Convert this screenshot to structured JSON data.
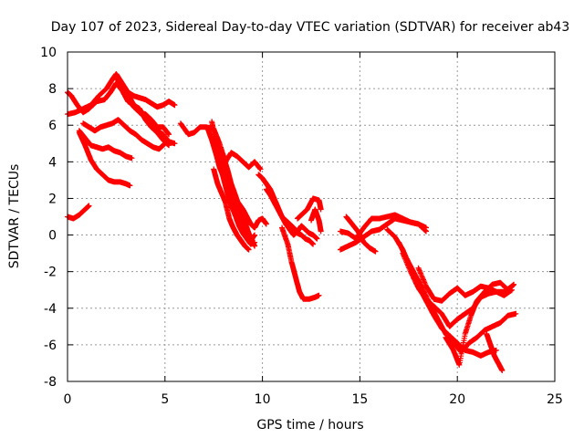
{
  "chart_data": {
    "type": "scatter",
    "title": "Day 107 of 2023, Sidereal Day-to-day VTEC variation (SDTVAR) for receiver ab43",
    "xlabel": "GPS time / hours",
    "ylabel": "SDTVAR / TECUs",
    "xlim": [
      0,
      25
    ],
    "ylim": [
      -8,
      10
    ],
    "xticks": [
      0,
      5,
      10,
      15,
      20,
      25
    ],
    "yticks": [
      -8,
      -6,
      -4,
      -2,
      0,
      2,
      4,
      6,
      8,
      10
    ],
    "grid": true,
    "marker": "+",
    "color": "#ff0000",
    "tracks": [
      [
        [
          0.0,
          1.0
        ],
        [
          0.3,
          0.9
        ],
        [
          0.6,
          1.1
        ],
        [
          0.9,
          1.4
        ],
        [
          1.1,
          1.6
        ]
      ],
      [
        [
          0.0,
          6.6
        ],
        [
          0.4,
          6.7
        ],
        [
          0.8,
          6.9
        ],
        [
          1.2,
          7.1
        ],
        [
          1.6,
          7.6
        ],
        [
          2.0,
          8.0
        ],
        [
          2.3,
          8.5
        ],
        [
          2.5,
          8.8
        ],
        [
          2.8,
          8.3
        ],
        [
          3.1,
          7.8
        ],
        [
          3.4,
          7.6
        ],
        [
          3.7,
          7.5
        ],
        [
          4.0,
          7.4
        ],
        [
          4.3,
          7.2
        ],
        [
          4.6,
          7.0
        ],
        [
          4.9,
          7.1
        ],
        [
          5.2,
          7.3
        ],
        [
          5.5,
          7.1
        ]
      ],
      [
        [
          0.0,
          7.8
        ],
        [
          0.2,
          7.6
        ],
        [
          0.5,
          7.1
        ],
        [
          0.8,
          6.7
        ],
        [
          1.1,
          6.9
        ],
        [
          1.5,
          7.3
        ],
        [
          1.9,
          7.4
        ],
        [
          2.2,
          7.8
        ],
        [
          2.5,
          8.3
        ],
        [
          2.8,
          7.9
        ],
        [
          3.1,
          7.3
        ],
        [
          3.4,
          7.1
        ],
        [
          3.7,
          6.7
        ],
        [
          4.0,
          6.6
        ],
        [
          4.3,
          6.3
        ],
        [
          4.6,
          5.9
        ],
        [
          4.9,
          5.9
        ],
        [
          5.2,
          5.5
        ]
      ],
      [
        [
          2.8,
          8.2
        ],
        [
          3.1,
          7.7
        ],
        [
          3.4,
          7.1
        ],
        [
          3.7,
          6.9
        ],
        [
          4.0,
          6.3
        ],
        [
          4.3,
          5.9
        ],
        [
          4.6,
          5.7
        ],
        [
          4.9,
          5.5
        ],
        [
          5.2,
          5.1
        ],
        [
          5.5,
          5.0
        ]
      ],
      [
        [
          2.5,
          8.6
        ],
        [
          2.8,
          8.1
        ],
        [
          3.1,
          7.4
        ],
        [
          3.4,
          7.0
        ],
        [
          3.7,
          6.7
        ],
        [
          4.0,
          6.4
        ],
        [
          4.3,
          5.9
        ],
        [
          4.6,
          5.6
        ],
        [
          4.9,
          5.2
        ],
        [
          5.2,
          4.9
        ]
      ],
      [
        [
          0.8,
          6.1
        ],
        [
          1.1,
          5.9
        ],
        [
          1.4,
          5.7
        ],
        [
          1.7,
          5.9
        ],
        [
          2.0,
          6.0
        ],
        [
          2.3,
          6.1
        ],
        [
          2.6,
          6.3
        ],
        [
          2.9,
          6.0
        ],
        [
          3.2,
          5.7
        ],
        [
          3.5,
          5.5
        ],
        [
          3.8,
          5.2
        ],
        [
          4.1,
          5.0
        ],
        [
          4.4,
          4.8
        ],
        [
          4.7,
          4.7
        ],
        [
          5.0,
          5.0
        ]
      ],
      [
        [
          0.6,
          5.7
        ],
        [
          0.9,
          5.3
        ],
        [
          1.2,
          4.9
        ],
        [
          1.5,
          4.8
        ],
        [
          1.8,
          4.7
        ],
        [
          2.1,
          4.8
        ],
        [
          2.4,
          4.6
        ],
        [
          2.7,
          4.5
        ],
        [
          3.0,
          4.3
        ],
        [
          3.3,
          4.2
        ]
      ],
      [
        [
          0.6,
          5.6
        ],
        [
          0.9,
          4.9
        ],
        [
          1.2,
          4.1
        ],
        [
          1.5,
          3.6
        ],
        [
          1.8,
          3.3
        ],
        [
          2.1,
          3.0
        ],
        [
          2.4,
          2.9
        ],
        [
          2.7,
          2.9
        ],
        [
          3.0,
          2.8
        ],
        [
          3.2,
          2.7
        ]
      ],
      [
        [
          5.8,
          6.1
        ],
        [
          6.2,
          5.5
        ],
        [
          6.5,
          5.6
        ],
        [
          6.8,
          5.9
        ],
        [
          7.1,
          5.9
        ],
        [
          7.5,
          5.8
        ],
        [
          7.8,
          5.0
        ],
        [
          8.1,
          4.0
        ],
        [
          8.4,
          4.5
        ],
        [
          8.7,
          4.3
        ],
        [
          9.0,
          4.0
        ],
        [
          9.3,
          3.7
        ],
        [
          9.6,
          4.0
        ],
        [
          9.9,
          3.6
        ]
      ],
      [
        [
          7.2,
          5.8
        ],
        [
          7.4,
          5.2
        ],
        [
          7.6,
          4.5
        ],
        [
          7.8,
          3.7
        ],
        [
          8.0,
          3.2
        ],
        [
          8.2,
          2.6
        ],
        [
          8.4,
          2.5
        ],
        [
          8.6,
          2.0
        ],
        [
          8.8,
          1.7
        ],
        [
          9.0,
          1.4
        ],
        [
          9.2,
          1.0
        ],
        [
          9.4,
          0.6
        ],
        [
          9.6,
          0.4
        ],
        [
          9.8,
          0.8
        ],
        [
          10.0,
          0.9
        ],
        [
          10.2,
          0.6
        ]
      ],
      [
        [
          7.4,
          6.2
        ],
        [
          7.6,
          5.2
        ],
        [
          7.8,
          4.8
        ],
        [
          8.0,
          4.3
        ],
        [
          8.2,
          3.6
        ],
        [
          8.4,
          2.8
        ],
        [
          8.6,
          2.2
        ],
        [
          8.8,
          1.6
        ],
        [
          9.0,
          1.0
        ],
        [
          9.2,
          0.4
        ],
        [
          9.4,
          -0.2
        ],
        [
          9.6,
          -0.6
        ]
      ],
      [
        [
          7.6,
          5.4
        ],
        [
          7.8,
          4.6
        ],
        [
          8.0,
          3.9
        ],
        [
          8.2,
          3.1
        ],
        [
          8.4,
          2.4
        ],
        [
          8.6,
          1.6
        ],
        [
          8.8,
          1.1
        ],
        [
          9.0,
          0.6
        ],
        [
          9.2,
          0.2
        ],
        [
          9.4,
          -0.3
        ],
        [
          9.6,
          0.0
        ]
      ],
      [
        [
          7.8,
          3.9
        ],
        [
          8.0,
          3.1
        ],
        [
          8.2,
          2.3
        ],
        [
          8.4,
          1.6
        ],
        [
          8.6,
          1.1
        ],
        [
          8.8,
          0.5
        ],
        [
          9.0,
          0.1
        ],
        [
          9.2,
          -0.2
        ],
        [
          9.4,
          -0.5
        ],
        [
          9.6,
          -0.4
        ]
      ],
      [
        [
          7.5,
          3.6
        ],
        [
          7.7,
          2.8
        ],
        [
          7.9,
          2.3
        ],
        [
          8.1,
          1.8
        ],
        [
          8.3,
          0.9
        ],
        [
          8.5,
          0.4
        ],
        [
          8.7,
          0.0
        ],
        [
          8.9,
          -0.3
        ],
        [
          9.1,
          -0.6
        ],
        [
          9.3,
          -0.8
        ]
      ],
      [
        [
          9.8,
          3.3
        ],
        [
          10.0,
          3.1
        ],
        [
          10.2,
          2.8
        ],
        [
          10.4,
          2.5
        ],
        [
          10.6,
          2.0
        ],
        [
          10.8,
          1.5
        ],
        [
          11.0,
          1.0
        ],
        [
          11.2,
          0.6
        ],
        [
          11.4,
          0.3
        ],
        [
          11.6,
          0.0
        ],
        [
          11.8,
          0.2
        ],
        [
          12.0,
          0.5
        ],
        [
          12.2,
          0.3
        ],
        [
          12.4,
          0.1
        ],
        [
          12.6,
          0.0
        ],
        [
          12.8,
          -0.2
        ]
      ],
      [
        [
          10.2,
          2.5
        ],
        [
          10.4,
          2.2
        ],
        [
          10.6,
          1.8
        ],
        [
          10.8,
          1.4
        ],
        [
          11.0,
          1.0
        ],
        [
          11.2,
          0.8
        ],
        [
          11.4,
          0.6
        ],
        [
          11.6,
          0.4
        ],
        [
          11.8,
          0.1
        ],
        [
          12.0,
          0.0
        ],
        [
          12.2,
          -0.2
        ],
        [
          12.4,
          -0.3
        ],
        [
          12.6,
          -0.5
        ]
      ],
      [
        [
          11.0,
          0.4
        ],
        [
          11.3,
          -0.5
        ],
        [
          11.5,
          -1.5
        ],
        [
          11.7,
          -2.3
        ],
        [
          11.9,
          -3.1
        ],
        [
          12.1,
          -3.5
        ],
        [
          12.4,
          -3.5
        ],
        [
          12.7,
          -3.4
        ],
        [
          12.9,
          -3.3
        ]
      ],
      [
        [
          11.8,
          0.9
        ],
        [
          12.0,
          1.1
        ],
        [
          12.3,
          1.4
        ],
        [
          12.6,
          2.0
        ],
        [
          12.9,
          1.9
        ],
        [
          13.0,
          1.4
        ]
      ],
      [
        [
          12.5,
          0.8
        ],
        [
          12.7,
          1.4
        ],
        [
          12.9,
          0.8
        ],
        [
          13.0,
          0.2
        ]
      ],
      [
        [
          14.0,
          -0.8
        ],
        [
          14.4,
          -0.6
        ],
        [
          14.8,
          -0.4
        ],
        [
          15.2,
          -0.1
        ],
        [
          15.6,
          0.2
        ],
        [
          16.0,
          0.3
        ],
        [
          16.4,
          0.6
        ],
        [
          16.8,
          0.9
        ],
        [
          17.2,
          0.8
        ],
        [
          17.6,
          0.7
        ],
        [
          18.0,
          0.6
        ],
        [
          18.4,
          0.2
        ]
      ],
      [
        [
          14.0,
          0.2
        ],
        [
          14.4,
          0.1
        ],
        [
          14.8,
          -0.2
        ],
        [
          15.2,
          0.4
        ],
        [
          15.6,
          0.9
        ],
        [
          16.0,
          0.9
        ],
        [
          16.4,
          1.0
        ],
        [
          16.8,
          1.1
        ],
        [
          17.2,
          0.9
        ],
        [
          17.6,
          0.7
        ],
        [
          18.0,
          0.6
        ],
        [
          18.4,
          0.4
        ]
      ],
      [
        [
          14.3,
          1.0
        ],
        [
          14.6,
          0.6
        ],
        [
          14.9,
          0.2
        ],
        [
          15.2,
          -0.4
        ],
        [
          15.5,
          -0.7
        ],
        [
          15.8,
          -0.9
        ]
      ],
      [
        [
          16.4,
          0.3
        ],
        [
          16.8,
          -0.1
        ],
        [
          17.2,
          -0.8
        ],
        [
          17.6,
          -1.8
        ],
        [
          18.0,
          -2.8
        ],
        [
          18.4,
          -3.6
        ],
        [
          18.8,
          -4.4
        ],
        [
          19.2,
          -5.1
        ],
        [
          19.6,
          -5.5
        ],
        [
          20.0,
          -5.9
        ],
        [
          20.4,
          -6.3
        ],
        [
          20.8,
          -6.4
        ],
        [
          21.2,
          -6.6
        ],
        [
          21.6,
          -6.4
        ],
        [
          22.0,
          -6.3
        ]
      ],
      [
        [
          17.0,
          -0.4
        ],
        [
          17.4,
          -1.3
        ],
        [
          17.8,
          -2.1
        ],
        [
          18.2,
          -2.9
        ],
        [
          18.6,
          -3.8
        ],
        [
          19.0,
          -4.6
        ],
        [
          19.4,
          -5.4
        ],
        [
          19.8,
          -5.9
        ],
        [
          20.2,
          -6.4
        ],
        [
          20.6,
          -5.9
        ],
        [
          21.0,
          -5.6
        ],
        [
          21.4,
          -5.2
        ],
        [
          21.8,
          -5.0
        ],
        [
          22.2,
          -4.8
        ],
        [
          22.6,
          -4.4
        ],
        [
          23.0,
          -4.3
        ]
      ],
      [
        [
          17.2,
          -1.0
        ],
        [
          17.6,
          -2.0
        ],
        [
          18.0,
          -2.9
        ],
        [
          18.4,
          -3.5
        ],
        [
          18.8,
          -3.9
        ],
        [
          19.2,
          -4.3
        ],
        [
          19.6,
          -5.0
        ],
        [
          20.0,
          -4.6
        ],
        [
          20.4,
          -4.3
        ],
        [
          20.8,
          -4.0
        ],
        [
          21.2,
          -3.4
        ],
        [
          21.6,
          -3.2
        ],
        [
          22.0,
          -3.1
        ],
        [
          22.4,
          -3.1
        ],
        [
          22.8,
          -2.8
        ]
      ],
      [
        [
          18.0,
          -1.8
        ],
        [
          18.4,
          -2.8
        ],
        [
          18.8,
          -3.5
        ],
        [
          19.2,
          -3.6
        ],
        [
          19.6,
          -3.2
        ],
        [
          20.0,
          -2.9
        ],
        [
          20.4,
          -3.3
        ],
        [
          20.8,
          -3.1
        ],
        [
          21.2,
          -2.8
        ],
        [
          21.6,
          -2.9
        ],
        [
          22.0,
          -3.1
        ],
        [
          22.4,
          -3.3
        ],
        [
          22.8,
          -3.0
        ]
      ],
      [
        [
          19.4,
          -5.6
        ],
        [
          19.8,
          -6.3
        ],
        [
          20.1,
          -7.1
        ],
        [
          20.4,
          -5.4
        ],
        [
          20.7,
          -4.4
        ],
        [
          21.0,
          -3.6
        ],
        [
          21.4,
          -3.1
        ],
        [
          21.8,
          -2.7
        ],
        [
          22.2,
          -2.6
        ],
        [
          22.6,
          -3.0
        ],
        [
          22.9,
          -2.7
        ]
      ],
      [
        [
          21.5,
          -5.4
        ],
        [
          21.7,
          -6.0
        ],
        [
          21.9,
          -6.6
        ],
        [
          22.1,
          -7.0
        ],
        [
          22.3,
          -7.4
        ]
      ]
    ]
  }
}
